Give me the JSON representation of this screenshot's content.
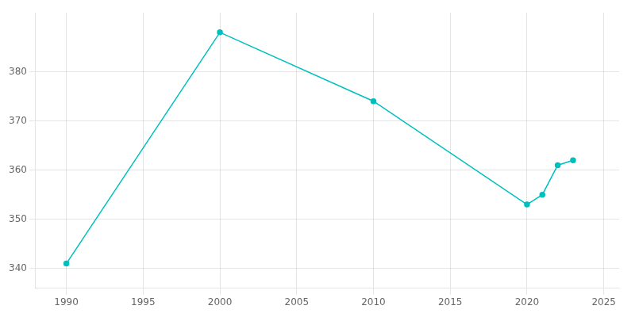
{
  "chart_data": {
    "type": "line",
    "x": [
      1990,
      2000,
      2010,
      2020,
      2021,
      2022,
      2023
    ],
    "values": [
      341,
      388,
      374,
      353,
      355,
      361,
      362
    ],
    "color": "#00BFBF",
    "marker": "circle",
    "xlim": [
      1988,
      2026
    ],
    "ylim": [
      336,
      392
    ],
    "xticks": [
      1990,
      1995,
      2000,
      2005,
      2010,
      2015,
      2020,
      2025
    ],
    "yticks": [
      340,
      350,
      360,
      370,
      380
    ],
    "grid": true
  }
}
